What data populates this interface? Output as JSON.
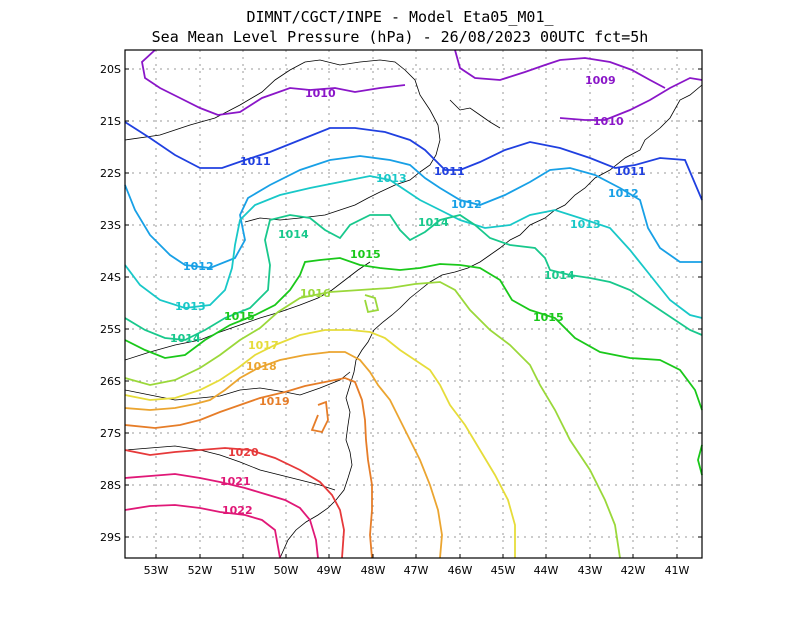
{
  "title": {
    "line1": "DIMNT/CGCT/INPE -  Model Eta05_M01_",
    "line2": "Sea Mean Level Pressure (hPa) - 26/08/2023 00UTC fct=5h"
  },
  "axes": {
    "lat_labels": [
      "20S",
      "21S",
      "22S",
      "23S",
      "24S",
      "25S",
      "26S",
      "27S",
      "28S",
      "29S"
    ],
    "lon_labels": [
      "53W",
      "52W",
      "51W",
      "50W",
      "49W",
      "48W",
      "47W",
      "46W",
      "45W",
      "44W",
      "43W",
      "42W",
      "41W"
    ]
  },
  "isobars": [
    {
      "value": 1009,
      "color": "#8a16c8",
      "labels": [
        "1009"
      ]
    },
    {
      "value": 1010,
      "color": "#8a16c8",
      "labels": [
        "1010",
        "1010"
      ]
    },
    {
      "value": 1011,
      "color": "#2040e0",
      "labels": [
        "1011",
        "1011",
        "1011"
      ]
    },
    {
      "value": 1012,
      "color": "#18a0e6",
      "labels": [
        "1012",
        "1012",
        "1012"
      ]
    },
    {
      "value": 1013,
      "color": "#18c8c8",
      "labels": [
        "1013",
        "1013",
        "1013"
      ]
    },
    {
      "value": 1014,
      "color": "#18c88c",
      "labels": [
        "1014",
        "1014",
        "1014",
        "1014"
      ]
    },
    {
      "value": 1015,
      "color": "#1ac81a",
      "labels": [
        "1015",
        "1015",
        "1015"
      ]
    },
    {
      "value": 1016,
      "color": "#9ad83a",
      "labels": [
        "1016"
      ]
    },
    {
      "value": 1017,
      "color": "#e6dc3a",
      "labels": [
        "1017"
      ]
    },
    {
      "value": 1018,
      "color": "#eba530",
      "labels": [
        "1018"
      ]
    },
    {
      "value": 1019,
      "color": "#e67d28",
      "labels": [
        "1019"
      ]
    },
    {
      "value": 1020,
      "color": "#e6393a",
      "labels": [
        "1020"
      ]
    },
    {
      "value": 1021,
      "color": "#e01877",
      "labels": [
        "1021"
      ]
    },
    {
      "value": 1022,
      "color": "#e01877",
      "labels": [
        "1022"
      ]
    }
  ]
}
